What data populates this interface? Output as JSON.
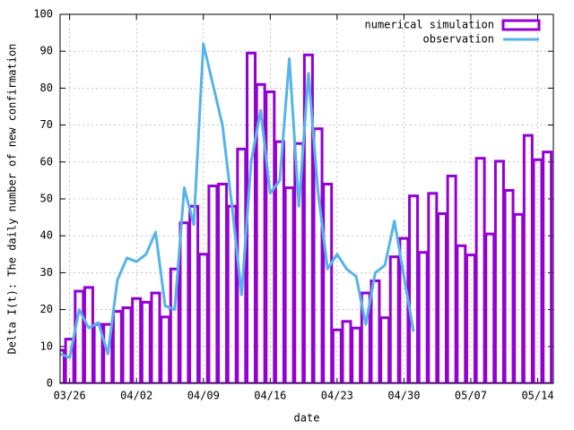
{
  "chart_data": {
    "type": "bar",
    "xlabel": "date",
    "ylabel": "Delta I(t): The daily number of new confirmation",
    "categories": [
      null,
      "03/26",
      null,
      null,
      null,
      null,
      null,
      null,
      "04/02",
      null,
      null,
      null,
      null,
      null,
      null,
      "04/09",
      null,
      null,
      null,
      null,
      null,
      null,
      "04/16",
      null,
      null,
      null,
      null,
      null,
      null,
      "04/23",
      null,
      null,
      null,
      null,
      null,
      null,
      "04/30",
      null,
      null,
      null,
      null,
      null,
      null,
      "05/07",
      null,
      null,
      null,
      null,
      null,
      null,
      "05/14",
      null
    ],
    "series": [
      {
        "name": "numerical simulation",
        "type": "bar",
        "color": "#9400d3",
        "values": [
          9,
          12,
          25,
          26,
          16,
          16,
          19.5,
          20.5,
          23,
          22,
          24.5,
          18,
          31,
          43.5,
          48,
          35,
          53.5,
          54,
          48,
          63.5,
          89.5,
          81,
          79,
          65.5,
          53,
          65,
          89,
          69,
          54,
          14.5,
          16.8,
          15,
          24.5,
          27.8,
          17.8,
          34.3,
          39.3,
          50.8,
          35.5,
          51.5,
          46,
          56.2,
          37.3,
          34.8,
          61,
          40.5,
          60.2,
          52.3,
          45.8,
          67.2,
          60.6,
          62.7
        ]
      },
      {
        "name": "observation",
        "type": "line",
        "color": "#56b4e9",
        "values": [
          8,
          7,
          20,
          15,
          16.5,
          8,
          28,
          34,
          33,
          35,
          41,
          21,
          20,
          53,
          43,
          92,
          81,
          70,
          48,
          24,
          60,
          74,
          51.5,
          55,
          88,
          48,
          84,
          52,
          31,
          35,
          31,
          29,
          16,
          30,
          32,
          44,
          29,
          14,
          null,
          null,
          null,
          null,
          null,
          null,
          null,
          null,
          null,
          null,
          null,
          null,
          null,
          null
        ]
      }
    ],
    "ylim": [
      0,
      100
    ],
    "yticks": [
      0,
      10,
      20,
      30,
      40,
      50,
      60,
      70,
      80,
      90,
      100
    ],
    "grid": true,
    "legend": "top-right"
  }
}
